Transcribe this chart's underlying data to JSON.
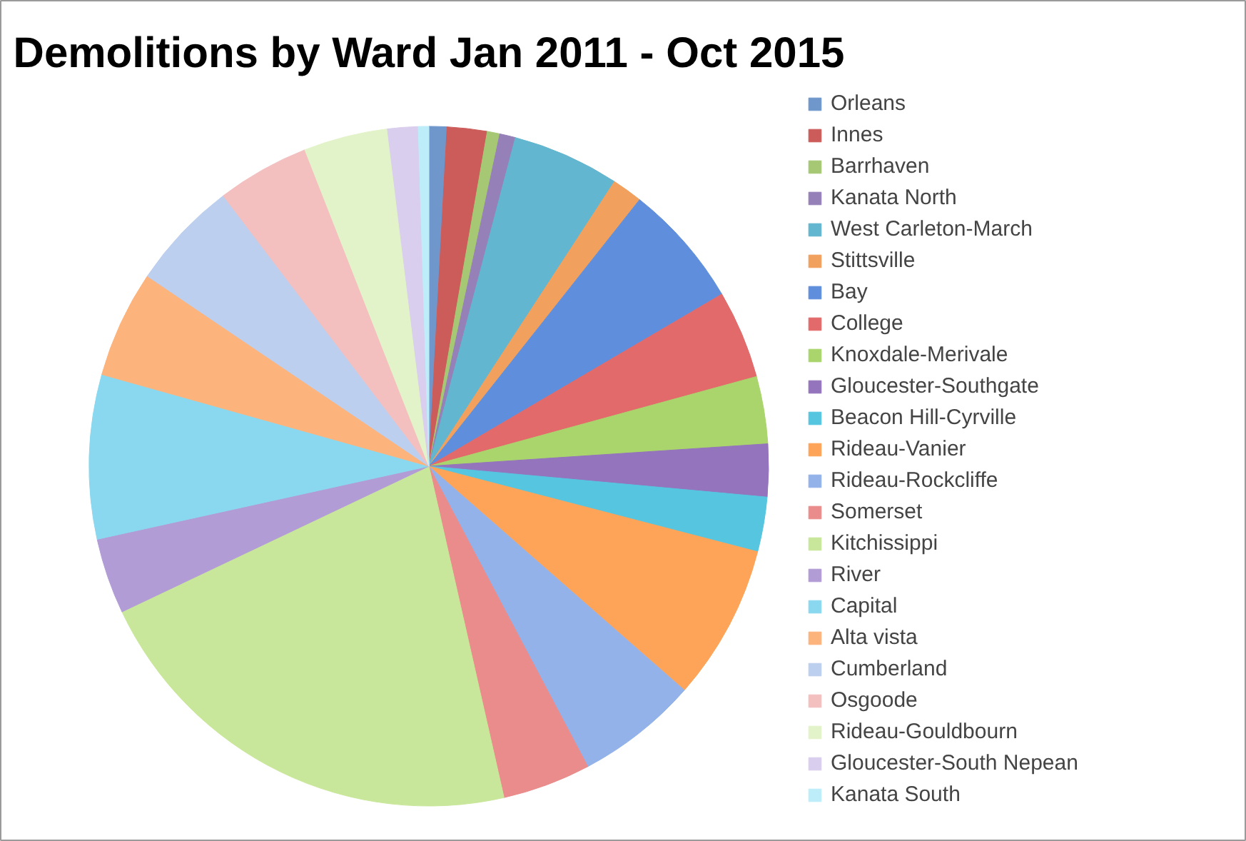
{
  "chart_data": {
    "type": "pie",
    "title": "Demolitions by Ward Jan 2011 - Oct 2015",
    "categories": [
      "Orleans",
      "Innes",
      "Barrhaven",
      "Kanata North",
      "West Carleton-March",
      "Stittsville",
      "Bay",
      "College",
      "Knoxdale-Merivale",
      "Gloucester-Southgate",
      "Beacon Hill-Cyrville",
      "Rideau-Vanier",
      "Rideau-Rockcliffe",
      "Somerset",
      "Kitchissippi",
      "River",
      "Capital",
      "Alta vista",
      "Cumberland",
      "Osgoode",
      "Rideau-Gouldbourn",
      "Gloucester-South Nepean",
      "Kanata South"
    ],
    "values": [
      0.85,
      1.9,
      0.6,
      0.75,
      5.1,
      1.45,
      5.9,
      4.2,
      3.2,
      2.5,
      2.6,
      7.4,
      5.8,
      4.2,
      21.5,
      3.6,
      7.8,
      5.1,
      5.2,
      4.4,
      4.0,
      1.45,
      0.5
    ],
    "colors": [
      "#6f97cc",
      "#cc5c5a",
      "#a6c874",
      "#9580b8",
      "#62b6cf",
      "#f2a05e",
      "#5f8fdc",
      "#e36a6a",
      "#a9d56c",
      "#9474bc",
      "#55c5e0",
      "#fda458",
      "#93b2ea",
      "#ea8c8c",
      "#c9e79a",
      "#b29cd6",
      "#8ad8ef",
      "#fcb37c",
      "#bdcfee",
      "#f3bfbf",
      "#e3f3c9",
      "#d9ceed",
      "#bdedf9"
    ],
    "legend": "right"
  }
}
